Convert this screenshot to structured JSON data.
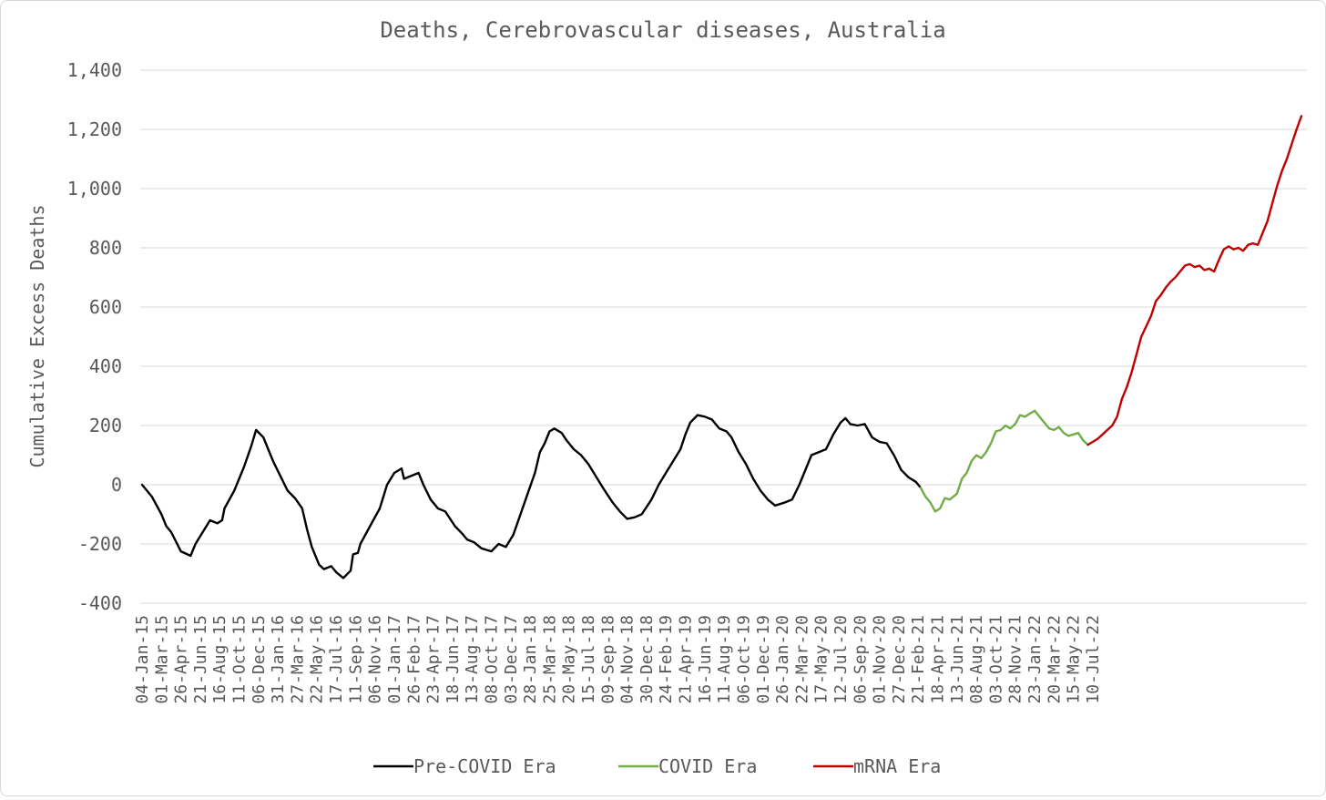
{
  "chart_data": {
    "type": "line",
    "title": "Deaths, Cerebrovascular diseases, Australia",
    "xlabel": "",
    "ylabel": "Cumulative Excess Deaths",
    "ylim": [
      -400,
      1400
    ],
    "yticks": [
      -400,
      -200,
      0,
      200,
      400,
      600,
      800,
      1000,
      1200,
      1400
    ],
    "ytick_labels": [
      "-400",
      "-200",
      "0",
      "200",
      "400",
      "600",
      "800",
      "1,000",
      "1,200",
      "1,400"
    ],
    "grid": true,
    "legend_position": "bottom",
    "x_tick_labels": [
      "04-Jan-15",
      "01-Mar-15",
      "26-Apr-15",
      "21-Jun-15",
      "16-Aug-15",
      "11-Oct-15",
      "06-Dec-15",
      "31-Jan-16",
      "27-Mar-16",
      "22-May-16",
      "17-Jul-16",
      "11-Sep-16",
      "06-Nov-16",
      "01-Jan-17",
      "26-Feb-17",
      "23-Apr-17",
      "18-Jun-17",
      "13-Aug-17",
      "08-Oct-17",
      "03-Dec-17",
      "28-Jan-18",
      "25-Mar-18",
      "20-May-18",
      "15-Jul-18",
      "09-Sep-18",
      "04-Nov-18",
      "30-Dec-18",
      "24-Feb-19",
      "21-Apr-19",
      "16-Jun-19",
      "11-Aug-19",
      "06-Oct-19",
      "01-Dec-19",
      "26-Jan-20",
      "22-Mar-20",
      "17-May-20",
      "12-Jul-20",
      "06-Sep-20",
      "01-Nov-20",
      "27-Dec-20",
      "21-Feb-21",
      "18-Apr-21",
      "13-Jun-21",
      "08-Aug-21",
      "03-Oct-21",
      "28-Nov-21",
      "23-Jan-22",
      "20-Mar-22",
      "15-May-22",
      "10-Jul-22"
    ],
    "x_week_start": "04-Jan-15",
    "series": [
      {
        "name": "Pre-COVID Era",
        "color": "#000000",
        "points": [
          [
            0,
            0
          ],
          [
            4,
            -40
          ],
          [
            8,
            -100
          ],
          [
            10,
            -140
          ],
          [
            12,
            -160
          ],
          [
            16,
            -225
          ],
          [
            20,
            -240
          ],
          [
            22,
            -200
          ],
          [
            25,
            -160
          ],
          [
            28,
            -120
          ],
          [
            31,
            -130
          ],
          [
            33,
            -120
          ],
          [
            34,
            -80
          ],
          [
            38,
            -20
          ],
          [
            42,
            60
          ],
          [
            45,
            130
          ],
          [
            47,
            185
          ],
          [
            50,
            160
          ],
          [
            54,
            80
          ],
          [
            57,
            30
          ],
          [
            60,
            -20
          ],
          [
            63,
            -45
          ],
          [
            66,
            -80
          ],
          [
            68,
            -150
          ],
          [
            70,
            -210
          ],
          [
            73,
            -270
          ],
          [
            75,
            -285
          ],
          [
            78,
            -275
          ],
          [
            80,
            -295
          ],
          [
            83,
            -315
          ],
          [
            86,
            -290
          ],
          [
            87,
            -235
          ],
          [
            89,
            -230
          ],
          [
            90,
            -200
          ],
          [
            94,
            -140
          ],
          [
            98,
            -80
          ],
          [
            101,
            0
          ],
          [
            104,
            40
          ],
          [
            107,
            55
          ],
          [
            108,
            20
          ],
          [
            111,
            30
          ],
          [
            114,
            40
          ],
          [
            116,
            0
          ],
          [
            119,
            -50
          ],
          [
            122,
            -80
          ],
          [
            125,
            -90
          ],
          [
            129,
            -140
          ],
          [
            132,
            -165
          ],
          [
            134,
            -185
          ],
          [
            137,
            -195
          ],
          [
            140,
            -215
          ],
          [
            144,
            -225
          ],
          [
            147,
            -200
          ],
          [
            150,
            -210
          ],
          [
            153,
            -170
          ],
          [
            156,
            -100
          ],
          [
            159,
            -30
          ],
          [
            162,
            40
          ],
          [
            164,
            110
          ],
          [
            166,
            140
          ],
          [
            168,
            180
          ],
          [
            170,
            190
          ],
          [
            173,
            175
          ],
          [
            175,
            150
          ],
          [
            178,
            120
          ],
          [
            181,
            100
          ],
          [
            184,
            70
          ],
          [
            187,
            30
          ],
          [
            190,
            -10
          ],
          [
            194,
            -60
          ],
          [
            197,
            -90
          ],
          [
            200,
            -115
          ],
          [
            203,
            -110
          ],
          [
            206,
            -100
          ],
          [
            210,
            -50
          ],
          [
            213,
            0
          ],
          [
            216,
            40
          ],
          [
            219,
            80
          ],
          [
            222,
            120
          ],
          [
            224,
            170
          ],
          [
            226,
            210
          ],
          [
            229,
            235
          ],
          [
            232,
            230
          ],
          [
            235,
            220
          ],
          [
            238,
            190
          ],
          [
            241,
            180
          ],
          [
            243,
            160
          ],
          [
            246,
            110
          ],
          [
            249,
            70
          ],
          [
            252,
            20
          ],
          [
            255,
            -20
          ],
          [
            258,
            -50
          ],
          [
            261,
            -70
          ],
          [
            265,
            -60
          ],
          [
            268,
            -50
          ],
          [
            271,
            0
          ],
          [
            274,
            60
          ],
          [
            276,
            100
          ],
          [
            279,
            110
          ],
          [
            282,
            120
          ],
          [
            285,
            170
          ],
          [
            288,
            210
          ],
          [
            290,
            225
          ],
          [
            292,
            205
          ],
          [
            295,
            200
          ],
          [
            298,
            205
          ],
          [
            301,
            160
          ],
          [
            304,
            145
          ],
          [
            307,
            140
          ],
          [
            310,
            100
          ],
          [
            313,
            50
          ],
          [
            316,
            25
          ],
          [
            319,
            10
          ],
          [
            321,
            -10
          ]
        ]
      },
      {
        "name": "COVID Era",
        "color": "#70ad47",
        "points": [
          [
            321,
            -10
          ],
          [
            323,
            -40
          ],
          [
            325,
            -60
          ],
          [
            327,
            -90
          ],
          [
            329,
            -80
          ],
          [
            331,
            -45
          ],
          [
            333,
            -50
          ],
          [
            336,
            -30
          ],
          [
            338,
            20
          ],
          [
            340,
            40
          ],
          [
            342,
            80
          ],
          [
            344,
            100
          ],
          [
            346,
            90
          ],
          [
            348,
            110
          ],
          [
            350,
            140
          ],
          [
            352,
            180
          ],
          [
            354,
            185
          ],
          [
            356,
            200
          ],
          [
            358,
            190
          ],
          [
            360,
            205
          ],
          [
            362,
            235
          ],
          [
            364,
            230
          ],
          [
            366,
            240
          ],
          [
            368,
            250
          ],
          [
            370,
            230
          ],
          [
            372,
            210
          ],
          [
            374,
            190
          ],
          [
            376,
            185
          ],
          [
            378,
            195
          ],
          [
            380,
            175
          ],
          [
            382,
            165
          ],
          [
            384,
            170
          ],
          [
            386,
            175
          ],
          [
            388,
            150
          ],
          [
            390,
            135
          ]
        ]
      },
      {
        "name": "mRNA Era",
        "color": "#c00000",
        "points": [
          [
            390,
            135
          ],
          [
            392,
            145
          ],
          [
            394,
            155
          ],
          [
            396,
            170
          ],
          [
            398,
            185
          ],
          [
            400,
            200
          ],
          [
            402,
            230
          ],
          [
            404,
            290
          ],
          [
            406,
            330
          ],
          [
            408,
            380
          ],
          [
            410,
            440
          ],
          [
            412,
            500
          ],
          [
            414,
            535
          ],
          [
            416,
            570
          ],
          [
            418,
            620
          ],
          [
            420,
            640
          ],
          [
            422,
            665
          ],
          [
            424,
            685
          ],
          [
            426,
            700
          ],
          [
            428,
            720
          ],
          [
            430,
            740
          ],
          [
            432,
            745
          ],
          [
            434,
            735
          ],
          [
            436,
            740
          ],
          [
            438,
            725
          ],
          [
            440,
            730
          ],
          [
            442,
            720
          ],
          [
            444,
            760
          ],
          [
            446,
            795
          ],
          [
            448,
            805
          ],
          [
            450,
            795
          ],
          [
            452,
            800
          ],
          [
            454,
            790
          ],
          [
            456,
            810
          ],
          [
            458,
            815
          ],
          [
            460,
            810
          ],
          [
            462,
            850
          ],
          [
            464,
            890
          ],
          [
            466,
            950
          ],
          [
            468,
            1010
          ],
          [
            470,
            1060
          ],
          [
            472,
            1100
          ],
          [
            474,
            1150
          ],
          [
            476,
            1200
          ],
          [
            478,
            1245
          ]
        ]
      }
    ]
  }
}
